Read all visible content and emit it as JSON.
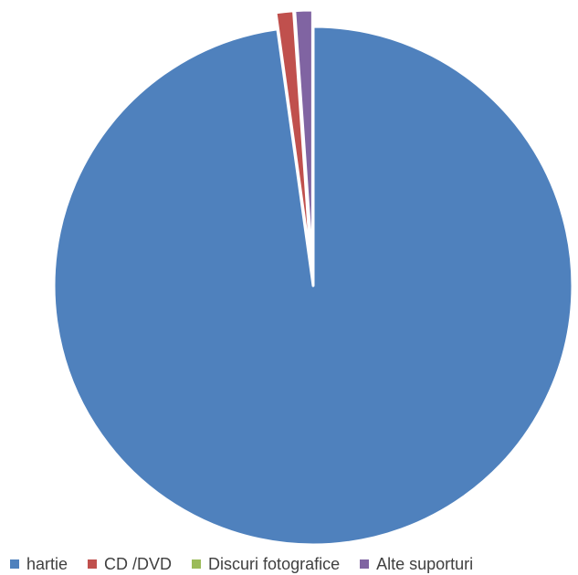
{
  "chart_data": {
    "type": "pie",
    "categories": [
      "hartie",
      "CD /DVD",
      "Discuri fotografice",
      "Alte suporturi"
    ],
    "values": [
      97.8,
      1.1,
      0.0,
      1.1
    ],
    "colors": [
      "#4F81BD",
      "#C0504D",
      "#9BBB59",
      "#8064A2"
    ],
    "title": "",
    "legend_position": "bottom",
    "exploded": true
  }
}
